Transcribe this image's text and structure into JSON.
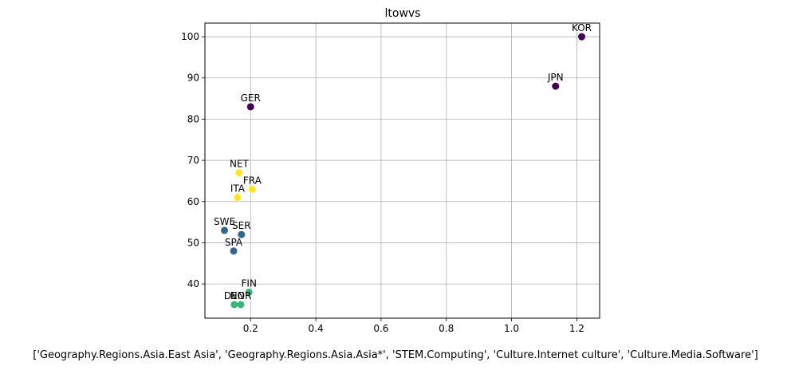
{
  "chart_data": {
    "type": "scatter",
    "title": "ltowvs",
    "xlabel": "['Geography.Regions.Asia.East Asia', 'Geography.Regions.Asia.Asia*', 'STEM.Computing', 'Culture.Internet culture', 'Culture.Media.Software']",
    "ylabel": "",
    "xlim": [
      0.06,
      1.27
    ],
    "ylim": [
      31.7,
      103.3
    ],
    "xticks": [
      0.2,
      0.4,
      0.6,
      0.8,
      1.0,
      1.2
    ],
    "xtick_labels": [
      "0.2",
      "0.4",
      "0.6",
      "0.8",
      "1.0",
      "1.2"
    ],
    "yticks": [
      40,
      50,
      60,
      70,
      80,
      90,
      100
    ],
    "ytick_labels": [
      "40",
      "50",
      "60",
      "70",
      "80",
      "90",
      "100"
    ],
    "grid": true,
    "points": [
      {
        "label": "KOR",
        "x": 1.215,
        "y": 100,
        "color": "#440154"
      },
      {
        "label": "JPN",
        "x": 1.135,
        "y": 88,
        "color": "#440154"
      },
      {
        "label": "GER",
        "x": 0.2,
        "y": 83,
        "color": "#440154"
      },
      {
        "label": "NET",
        "x": 0.165,
        "y": 67,
        "color": "#fde725"
      },
      {
        "label": "FRA",
        "x": 0.205,
        "y": 63,
        "color": "#fde725"
      },
      {
        "label": "ITA",
        "x": 0.16,
        "y": 61,
        "color": "#fde725"
      },
      {
        "label": "SWE",
        "x": 0.12,
        "y": 53,
        "color": "#31688e"
      },
      {
        "label": "SER",
        "x": 0.172,
        "y": 52,
        "color": "#31688e"
      },
      {
        "label": "SPA",
        "x": 0.148,
        "y": 48,
        "color": "#31688e"
      },
      {
        "label": "FIN",
        "x": 0.195,
        "y": 38,
        "color": "#35b779"
      },
      {
        "label": "DEN",
        "x": 0.15,
        "y": 35,
        "color": "#35b779"
      },
      {
        "label": "NOR",
        "x": 0.17,
        "y": 35,
        "color": "#35b779"
      }
    ]
  }
}
